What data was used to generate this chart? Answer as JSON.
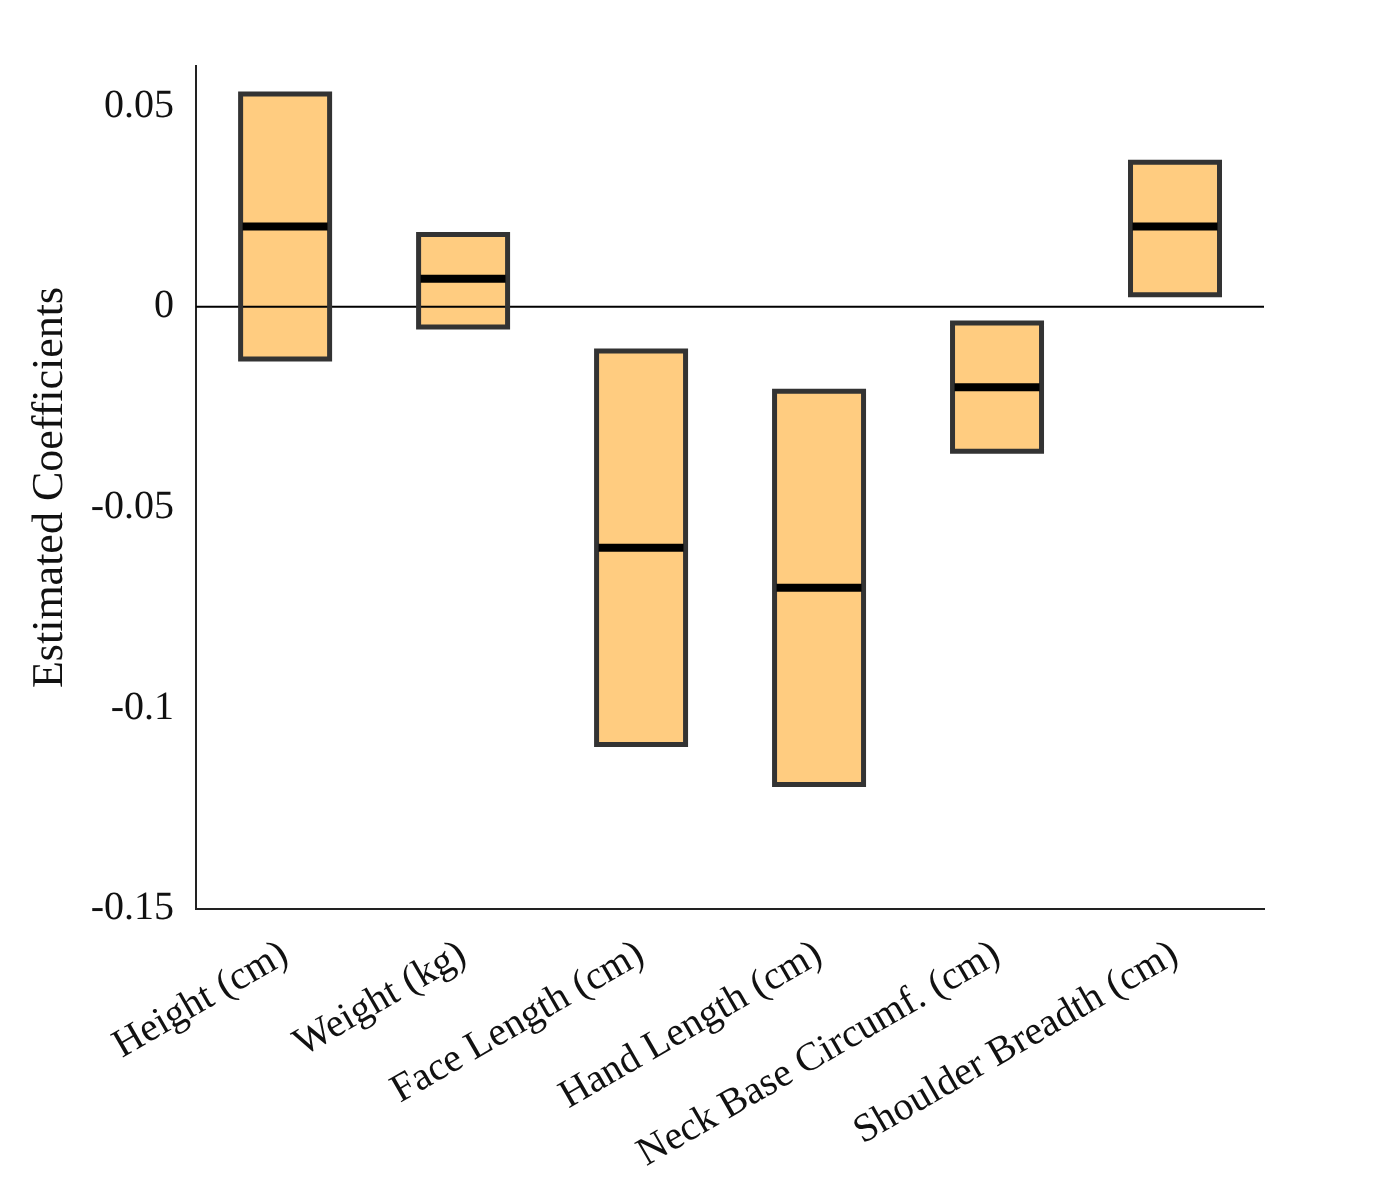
{
  "chart_data": {
    "type": "box",
    "ylabel": "Estimated Coefficients",
    "categories": [
      "Height (cm)",
      "Weight (kg)",
      "Face Length (cm)",
      "Hand Length (cm)",
      "Neck Base Circumf. (cm)",
      "Shoulder Breadth (cm)"
    ],
    "boxes": [
      {
        "low": -0.013,
        "q1": -0.013,
        "median": 0.02,
        "q3": 0.053,
        "high": 0.053
      },
      {
        "low": -0.005,
        "q1": -0.005,
        "median": 0.007,
        "q3": 0.018,
        "high": 0.018
      },
      {
        "low": -0.109,
        "q1": -0.109,
        "median": -0.06,
        "q3": -0.011,
        "high": -0.011
      },
      {
        "low": -0.119,
        "q1": -0.119,
        "median": -0.07,
        "q3": -0.021,
        "high": -0.021
      },
      {
        "low": -0.036,
        "q1": -0.036,
        "median": -0.02,
        "q3": -0.004,
        "high": -0.004
      },
      {
        "low": 0.003,
        "q1": 0.003,
        "median": 0.02,
        "q3": 0.036,
        "high": 0.036
      }
    ],
    "color": "#ffcc80",
    "ylim": [
      -0.15,
      0.06
    ],
    "yticks": [
      -0.15,
      -0.1,
      -0.05,
      0,
      0.05
    ],
    "ref_lines": [
      {
        "axis": "y",
        "value": 0
      }
    ],
    "grid": false,
    "legend": false
  }
}
